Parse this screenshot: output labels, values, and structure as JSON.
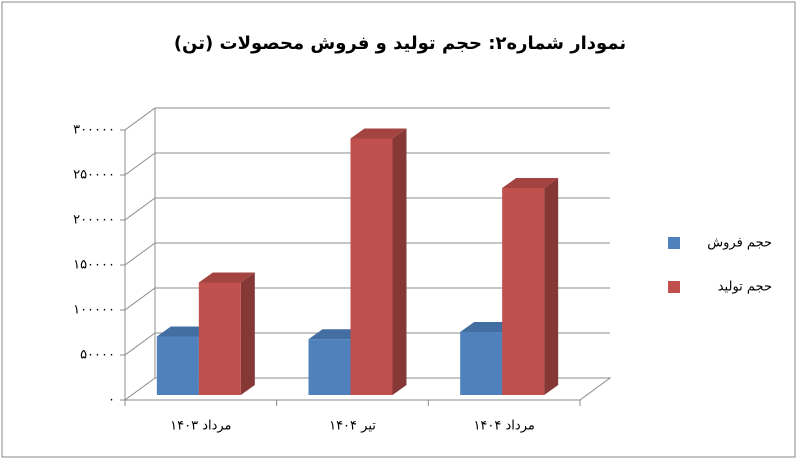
{
  "chart_data": {
    "type": "bar3d",
    "title": "نمودار شماره۲: حجم تولید و فروش محصولات (تن)",
    "categories": [
      "مرداد ۱۴۰۳",
      "تیر ۱۴۰۴",
      "مرداد ۱۴۰۴"
    ],
    "series": [
      {
        "name": "حجم فروش",
        "color": "#4f81bd",
        "values": [
          65000,
          62000,
          70000
        ]
      },
      {
        "name": "حجم تولید",
        "color": "#c0504d",
        "values": [
          125000,
          285000,
          230000
        ]
      }
    ],
    "ylim": [
      0,
      300000
    ],
    "yticks": [
      {
        "value": 0,
        "label": "۰"
      },
      {
        "value": 50000,
        "label": "۵۰۰۰۰"
      },
      {
        "value": 100000,
        "label": "۱۰۰۰۰۰"
      },
      {
        "value": 150000,
        "label": "۱۵۰۰۰۰"
      },
      {
        "value": 200000,
        "label": "۲۰۰۰۰۰"
      },
      {
        "value": 250000,
        "label": "۲۵۰۰۰۰"
      },
      {
        "value": 300000,
        "label": "۳۰۰۰۰۰"
      }
    ],
    "grid": true,
    "legend": "right"
  }
}
